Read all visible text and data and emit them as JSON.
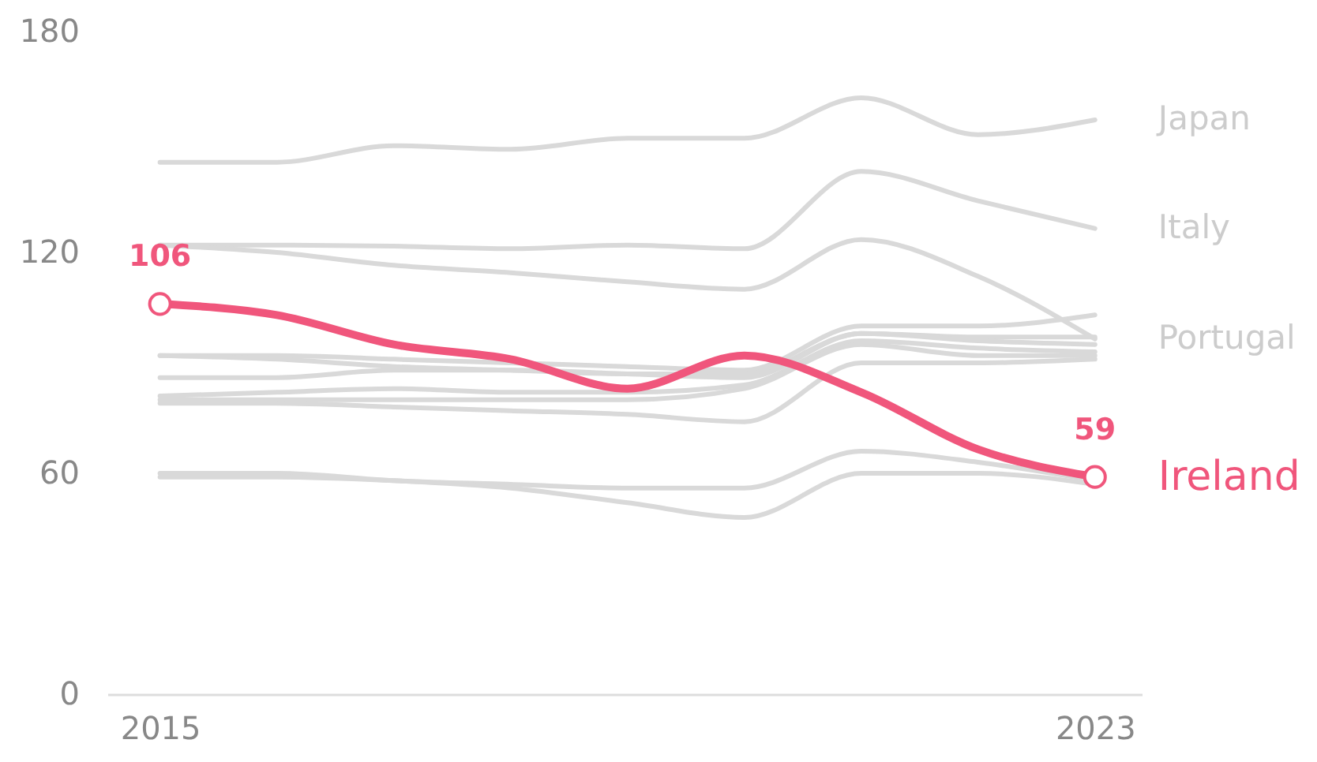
{
  "chart_data": {
    "type": "line",
    "x": [
      2015,
      2016,
      2017,
      2018,
      2019,
      2020,
      2021,
      2022,
      2023
    ],
    "xlim": [
      2014.55,
      2023.4
    ],
    "xticks": [
      2015,
      2023
    ],
    "ylim": [
      0,
      180
    ],
    "yticks": [
      0,
      60,
      120,
      180
    ],
    "grid": false,
    "marker": "none",
    "line_style": "solid",
    "series": [
      {
        "color": "#d9d9d9",
        "values": [
          92,
          92,
          91,
          90,
          89,
          88,
          100,
          100,
          103
        ]
      },
      {
        "color": "#d9d9d9",
        "values": [
          92,
          91,
          89,
          88,
          87,
          87,
          98,
          97,
          97
        ]
      },
      {
        "color": "#d9d9d9",
        "values": [
          86,
          86,
          88,
          88,
          87,
          86,
          98,
          96,
          95
        ]
      },
      {
        "color": "#d9d9d9",
        "values": [
          81,
          82,
          83,
          82,
          82,
          84,
          96,
          94,
          93
        ]
      },
      {
        "color": "#d9d9d9",
        "values": [
          80,
          80,
          80,
          80,
          80,
          83,
          95,
          92,
          92
        ]
      },
      {
        "color": "#d9d9d9",
        "values": [
          79,
          79,
          78,
          77,
          76,
          74,
          90,
          90,
          91
        ]
      },
      {
        "color": "#d9d9d9",
        "values": [
          60,
          60,
          58,
          57,
          56,
          56,
          66,
          63,
          58
        ]
      },
      {
        "color": "#d9d9d9",
        "values": [
          59,
          59,
          58,
          56,
          52,
          48,
          60,
          60,
          57
        ]
      },
      {
        "name": "Japan",
        "color": "#d9d9d9",
        "values": [
          144.5,
          144.5,
          149,
          148,
          151,
          151,
          162,
          152,
          156
        ]
      },
      {
        "name": "Italy",
        "color": "#d9d9d9",
        "values": [
          122,
          122,
          121.7,
          121,
          122,
          121,
          142,
          134,
          126.5
        ]
      },
      {
        "name": "Portugal",
        "color": "#d9d9d9",
        "values": [
          122,
          120,
          116.5,
          114.5,
          112,
          110,
          123.5,
          113.5,
          96.5
        ]
      },
      {
        "name": "Ireland",
        "color": "#f0567c",
        "values": [
          106,
          103,
          95,
          91,
          83,
          92,
          82,
          66.5,
          59
        ],
        "value_labels": [
          "106",
          null,
          null,
          null,
          null,
          null,
          null,
          null,
          "59"
        ]
      }
    ]
  }
}
